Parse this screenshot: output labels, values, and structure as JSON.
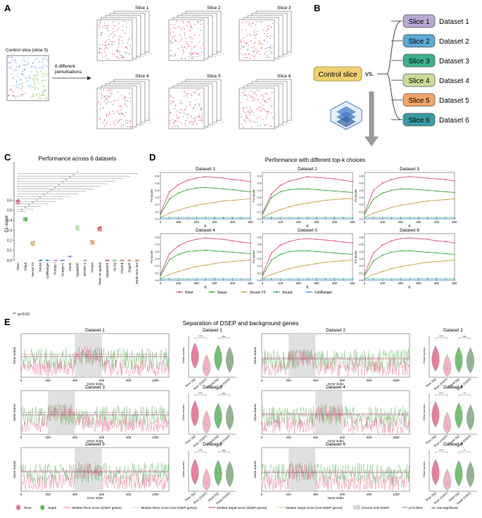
{
  "panels": {
    "A": {
      "letter": "A",
      "control_label": "Control slice (slice 0)",
      "arrow_label_1": "6 different",
      "arrow_label_2": "perturbations",
      "slices": [
        "Slice 1",
        "Slice 2",
        "Slice 3",
        "Slice 4",
        "Slice 5",
        "Slice 6"
      ]
    },
    "B": {
      "letter": "B",
      "control": "Control slice",
      "vs": "vs.",
      "rows": [
        {
          "slice": "Slice 1",
          "dataset": "Dataset 1",
          "color": "#b9a7d3"
        },
        {
          "slice": "Slice 2",
          "dataset": "Dataset 2",
          "color": "#5aa9d6"
        },
        {
          "slice": "Slice 3",
          "dataset": "Dataset 3",
          "color": "#3bb08f"
        },
        {
          "slice": "Slice 4",
          "dataset": "Dataset 4",
          "color": "#c9dc9a"
        },
        {
          "slice": "Slice 5",
          "dataset": "Dataset 5",
          "color": "#f2a469"
        },
        {
          "slice": "Slice 6",
          "dataset": "Dataset 6",
          "color": "#3a9aa3"
        }
      ]
    },
    "C": {
      "letter": "C",
      "title": "Performance across 6 datasets",
      "ylabel": "F1-score",
      "footnote": "**: p<0.01",
      "sig_label": "**",
      "yticks": [
        "0.0",
        "0.1",
        "0.2",
        "0.3",
        "0.4",
        "0.5",
        "0.6"
      ]
    },
    "D": {
      "letter": "D",
      "title": "Performance with different top-k choices",
      "xlabel": "K",
      "ylabel": "F1-score",
      "subplots": [
        "Dataset 1",
        "Dataset 2",
        "Dataset 3",
        "Dataset 4",
        "Dataset 5",
        "Dataset 6"
      ],
      "xticks": [
        "0",
        "100",
        "200",
        "300",
        "400",
        "500"
      ],
      "yticks": [
        "0.0",
        "0.1",
        "0.2",
        "0.3",
        "0.4",
        "0.5",
        "0.6"
      ],
      "legend": [
        {
          "name": "River",
          "color": "#d9507a"
        },
        {
          "name": "Sepal",
          "color": "#3aa63a"
        },
        {
          "name": "Seurat V3",
          "color": "#c9a14a"
        },
        {
          "name": "Seurat",
          "color": "#2aa08a"
        },
        {
          "name": "CellRanger",
          "color": "#4a90d9"
        }
      ]
    },
    "E": {
      "letter": "E",
      "title": "Separation of DSEP and background genes",
      "xlabel": "Gene index",
      "ylabel": "Gene scores",
      "violin_ylabel": "Gene scores",
      "xticks": [
        "0",
        "200",
        "400",
        "600",
        "800",
        "1000"
      ],
      "datasets": [
        "Dataset 1",
        "Dataset 2",
        "Dataset 3",
        "Dataset 4",
        "Dataset 5",
        "Dataset 6"
      ],
      "violin_cats": [
        "River (bg)",
        "River (DSEP)",
        "Sepal (bg)",
        "Sepal (DSEP)"
      ],
      "violin_sig": [
        {
          "left": "****",
          "right": "ns"
        },
        {
          "left": "****",
          "right": "ns"
        },
        {
          "left": "****",
          "right": "ns"
        },
        {
          "left": "****",
          "right": "**"
        },
        {
          "left": "****",
          "right": "ns"
        },
        {
          "left": "****",
          "right": "**"
        }
      ],
      "legend": [
        {
          "name": "River",
          "kind": "violin",
          "color": "#e36a8c"
        },
        {
          "name": "Sepal",
          "kind": "violin",
          "color": "#5fb55f"
        },
        {
          "name": "Median River score (DSEP genes)",
          "kind": "dash",
          "color": "#d9507a"
        },
        {
          "name": "Median River score (non-DSEP genes)",
          "kind": "dash",
          "color": "#e9a0b5"
        },
        {
          "name": "Median Sepal score (DSEP genes)",
          "kind": "line",
          "color": "#a03a6a"
        },
        {
          "name": "Median Sepal score (non-DSEP genes)",
          "kind": "dash",
          "color": "#c9b05a"
        },
        {
          "name": "Ground truth DSEP",
          "kind": "box",
          "color": "#d8d8d8"
        }
      ],
      "legend_note_1": "****: p<0.0001",
      "legend_note_2": "ns: non-significant"
    }
  },
  "chart_data": [
    {
      "type": "scatter",
      "title": "Performance across 6 datasets",
      "ylabel": "F1-score",
      "ylim": [
        0,
        0.7
      ],
      "categories": [
        "River",
        "Sepal",
        "Seurat V3",
        "Seurat",
        "CellRanger",
        "Scanpy I",
        "Scanpy C",
        "trVAE",
        "SpatialDE",
        "SPARK-X",
        "Persist",
        "River no spatial",
        "SpatialDIT",
        "HLSQ",
        "Pluclick",
        "EdgeR",
        "Rank-Sum test"
      ],
      "values": [
        0.58,
        0.41,
        0.17,
        0.0,
        0.0,
        0.0,
        0.0,
        0.04,
        0.32,
        0.0,
        0.18,
        0.31,
        0.0,
        0.0,
        0.0,
        0.0,
        0.0
      ]
    },
    {
      "type": "line",
      "title": "Performance with different top-k choices",
      "xlabel": "K",
      "ylabel": "F1-score",
      "xlim": [
        0,
        500
      ],
      "ylim": [
        0,
        0.65
      ],
      "x": [
        0,
        50,
        100,
        150,
        200,
        250,
        300,
        350,
        400,
        450,
        500
      ],
      "panels": [
        {
          "name": "Dataset 1",
          "series": [
            {
              "name": "River",
              "values": [
                0.08,
                0.38,
                0.48,
                0.54,
                0.57,
                0.59,
                0.58,
                0.57,
                0.55,
                0.54,
                0.52
              ]
            },
            {
              "name": "Sepal",
              "values": [
                0.06,
                0.28,
                0.36,
                0.41,
                0.43,
                0.44,
                0.43,
                0.42,
                0.41,
                0.39,
                0.38
              ]
            },
            {
              "name": "Seurat V3",
              "values": [
                0.02,
                0.08,
                0.12,
                0.16,
                0.19,
                0.21,
                0.23,
                0.25,
                0.26,
                0.27,
                0.28
              ]
            },
            {
              "name": "Seurat",
              "values": [
                0.02,
                0.02,
                0.02,
                0.02,
                0.02,
                0.02,
                0.02,
                0.02,
                0.02,
                0.02,
                0.02
              ]
            },
            {
              "name": "CellRanger",
              "values": [
                0.0,
                0.0,
                0.0,
                0.0,
                0.0,
                0.0,
                0.0,
                0.0,
                0.0,
                0.0,
                0.0
              ]
            }
          ]
        },
        {
          "name": "Dataset 2",
          "series": [
            {
              "name": "River",
              "values": [
                0.08,
                0.35,
                0.47,
                0.53,
                0.56,
                0.59,
                0.58,
                0.57,
                0.56,
                0.54,
                0.52
              ]
            },
            {
              "name": "Sepal",
              "values": [
                0.06,
                0.3,
                0.38,
                0.41,
                0.42,
                0.42,
                0.41,
                0.4,
                0.39,
                0.38,
                0.37
              ]
            },
            {
              "name": "Seurat V3",
              "values": [
                0.02,
                0.08,
                0.13,
                0.17,
                0.2,
                0.22,
                0.24,
                0.26,
                0.27,
                0.28,
                0.28
              ]
            },
            {
              "name": "Seurat",
              "values": [
                0.02,
                0.02,
                0.02,
                0.02,
                0.02,
                0.02,
                0.02,
                0.02,
                0.02,
                0.02,
                0.02
              ]
            },
            {
              "name": "CellRanger",
              "values": [
                0.0,
                0.0,
                0.0,
                0.0,
                0.0,
                0.0,
                0.0,
                0.0,
                0.0,
                0.0,
                0.0
              ]
            }
          ]
        },
        {
          "name": "Dataset 3",
          "series": [
            {
              "name": "River",
              "values": [
                0.08,
                0.4,
                0.5,
                0.55,
                0.58,
                0.59,
                0.58,
                0.57,
                0.56,
                0.55,
                0.53
              ]
            },
            {
              "name": "Sepal",
              "values": [
                0.06,
                0.28,
                0.36,
                0.4,
                0.42,
                0.42,
                0.41,
                0.4,
                0.39,
                0.38,
                0.37
              ]
            },
            {
              "name": "Seurat V3",
              "values": [
                0.02,
                0.08,
                0.12,
                0.16,
                0.19,
                0.21,
                0.23,
                0.25,
                0.26,
                0.27,
                0.28
              ]
            },
            {
              "name": "Seurat",
              "values": [
                0.02,
                0.02,
                0.02,
                0.02,
                0.02,
                0.02,
                0.02,
                0.02,
                0.02,
                0.02,
                0.02
              ]
            },
            {
              "name": "CellRanger",
              "values": [
                0.0,
                0.0,
                0.0,
                0.0,
                0.0,
                0.0,
                0.0,
                0.0,
                0.0,
                0.0,
                0.0
              ]
            }
          ]
        },
        {
          "name": "Dataset 4",
          "series": [
            {
              "name": "River",
              "values": [
                0.08,
                0.37,
                0.48,
                0.54,
                0.57,
                0.59,
                0.58,
                0.57,
                0.55,
                0.53,
                0.52
              ]
            },
            {
              "name": "Sepal",
              "values": [
                0.06,
                0.29,
                0.36,
                0.4,
                0.41,
                0.42,
                0.41,
                0.4,
                0.39,
                0.38,
                0.37
              ]
            },
            {
              "name": "Seurat V3",
              "values": [
                0.02,
                0.08,
                0.12,
                0.16,
                0.19,
                0.21,
                0.23,
                0.25,
                0.26,
                0.27,
                0.28
              ]
            },
            {
              "name": "Seurat",
              "values": [
                0.02,
                0.02,
                0.02,
                0.02,
                0.02,
                0.02,
                0.02,
                0.02,
                0.02,
                0.02,
                0.02
              ]
            },
            {
              "name": "CellRanger",
              "values": [
                0.0,
                0.0,
                0.0,
                0.0,
                0.0,
                0.0,
                0.0,
                0.0,
                0.0,
                0.0,
                0.0
              ]
            }
          ]
        },
        {
          "name": "Dataset 5",
          "series": [
            {
              "name": "River",
              "values": [
                0.08,
                0.38,
                0.49,
                0.54,
                0.57,
                0.58,
                0.57,
                0.56,
                0.55,
                0.53,
                0.52
              ]
            },
            {
              "name": "Sepal",
              "values": [
                0.06,
                0.28,
                0.36,
                0.4,
                0.41,
                0.41,
                0.4,
                0.39,
                0.38,
                0.37,
                0.36
              ]
            },
            {
              "name": "Seurat V3",
              "values": [
                0.02,
                0.08,
                0.12,
                0.16,
                0.19,
                0.21,
                0.23,
                0.25,
                0.26,
                0.27,
                0.28
              ]
            },
            {
              "name": "Seurat",
              "values": [
                0.02,
                0.02,
                0.02,
                0.02,
                0.02,
                0.02,
                0.02,
                0.02,
                0.02,
                0.02,
                0.02
              ]
            },
            {
              "name": "CellRanger",
              "values": [
                0.0,
                0.0,
                0.0,
                0.0,
                0.0,
                0.0,
                0.0,
                0.0,
                0.0,
                0.0,
                0.0
              ]
            }
          ]
        },
        {
          "name": "Dataset 6",
          "series": [
            {
              "name": "River",
              "values": [
                0.08,
                0.38,
                0.49,
                0.55,
                0.58,
                0.59,
                0.58,
                0.57,
                0.55,
                0.54,
                0.52
              ]
            },
            {
              "name": "Sepal",
              "values": [
                0.06,
                0.27,
                0.35,
                0.39,
                0.41,
                0.41,
                0.4,
                0.39,
                0.38,
                0.37,
                0.36
              ]
            },
            {
              "name": "Seurat V3",
              "values": [
                0.02,
                0.08,
                0.12,
                0.16,
                0.19,
                0.21,
                0.23,
                0.25,
                0.26,
                0.27,
                0.28
              ]
            },
            {
              "name": "Seurat",
              "values": [
                0.02,
                0.02,
                0.02,
                0.02,
                0.02,
                0.02,
                0.02,
                0.02,
                0.02,
                0.02,
                0.02
              ]
            },
            {
              "name": "CellRanger",
              "values": [
                0.0,
                0.0,
                0.0,
                0.0,
                0.0,
                0.0,
                0.0,
                0.0,
                0.0,
                0.0,
                0.0
              ]
            }
          ]
        }
      ]
    },
    {
      "type": "line",
      "title": "Separation of DSEP and background genes",
      "xlabel": "Gene index",
      "ylabel": "Gene scores",
      "xlim": [
        0,
        1100
      ],
      "ylim": [
        0,
        1
      ],
      "panels": [
        {
          "name": "Dataset 1",
          "dsep_range": [
            400,
            600
          ],
          "river_median_dsep": 0.52,
          "river_median_bg": 0.22,
          "sepal_median_dsep": 0.47,
          "sepal_median_bg": 0.42
        },
        {
          "name": "Dataset 2",
          "dsep_range": [
            200,
            400
          ],
          "river_median_dsep": 0.45,
          "river_median_bg": 0.22,
          "sepal_median_dsep": 0.42,
          "sepal_median_bg": 0.4
        },
        {
          "name": "Dataset 3",
          "dsep_range": [
            200,
            400
          ],
          "river_median_dsep": 0.5,
          "river_median_bg": 0.25,
          "sepal_median_dsep": 0.44,
          "sepal_median_bg": 0.41
        },
        {
          "name": "Dataset 4",
          "dsep_range": [
            400,
            600
          ],
          "river_median_dsep": 0.48,
          "river_median_bg": 0.21,
          "sepal_median_dsep": 0.45,
          "sepal_median_bg": 0.4
        },
        {
          "name": "Dataset 5",
          "dsep_range": [
            400,
            600
          ],
          "river_median_dsep": 0.47,
          "river_median_bg": 0.22,
          "sepal_median_dsep": 0.44,
          "sepal_median_bg": 0.41
        },
        {
          "name": "Dataset 6",
          "dsep_range": [
            200,
            400
          ],
          "river_median_dsep": 0.46,
          "river_median_bg": 0.21,
          "sepal_median_dsep": 0.43,
          "sepal_median_bg": 0.4
        }
      ]
    }
  ]
}
